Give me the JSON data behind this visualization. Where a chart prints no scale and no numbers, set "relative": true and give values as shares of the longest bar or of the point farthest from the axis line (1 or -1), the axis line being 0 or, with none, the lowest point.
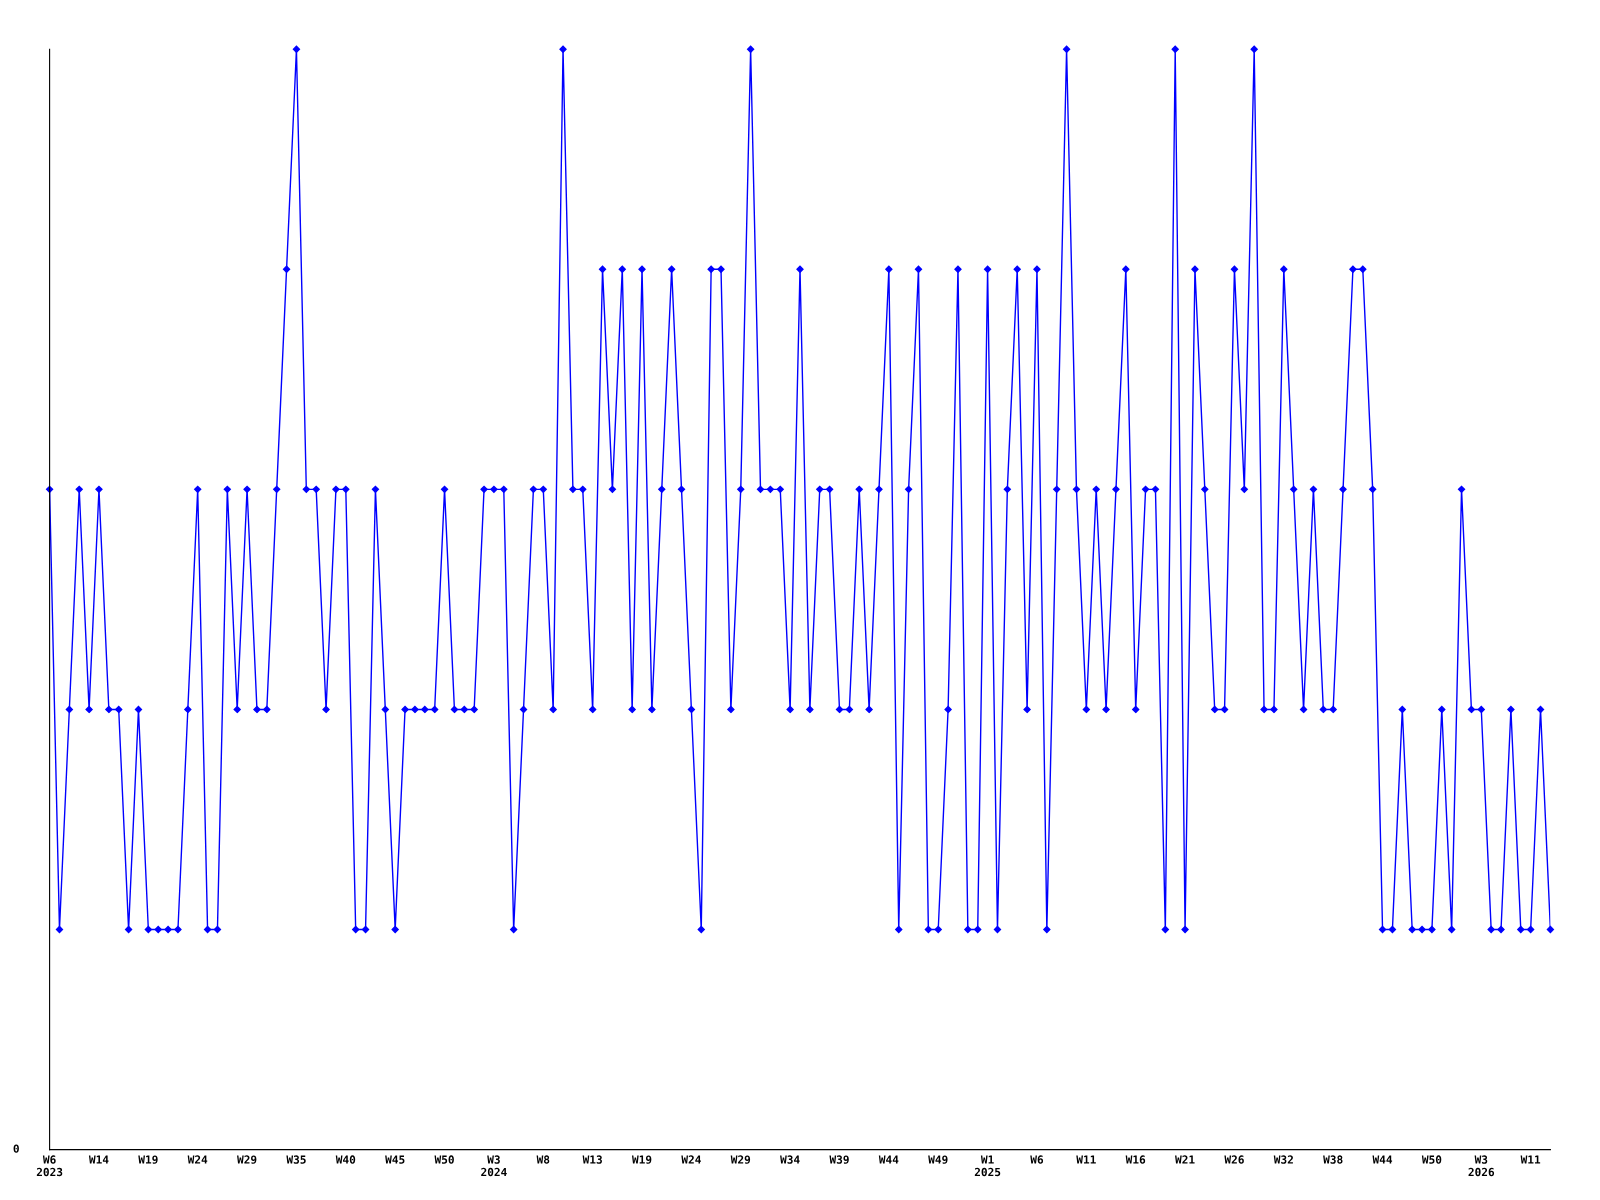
{
  "chart_data": {
    "type": "line",
    "relative": true,
    "marker": "diamond",
    "line_style": "solid",
    "grid": false,
    "color": "#0000ff",
    "annotations": [
      "0"
    ],
    "categories": [
      "W6\n2023",
      null,
      null,
      null,
      null,
      "W14",
      null,
      null,
      null,
      null,
      "W19",
      null,
      null,
      null,
      null,
      "W24",
      null,
      null,
      null,
      null,
      "W29",
      null,
      null,
      null,
      null,
      "W35",
      null,
      null,
      null,
      null,
      "W40",
      null,
      null,
      null,
      null,
      "W45",
      null,
      null,
      null,
      null,
      "W50",
      null,
      null,
      null,
      null,
      "W3\n2024",
      null,
      null,
      null,
      null,
      "W8",
      null,
      null,
      null,
      null,
      "W13",
      null,
      null,
      null,
      null,
      "W19",
      null,
      null,
      null,
      null,
      "W24",
      null,
      null,
      null,
      null,
      "W29",
      null,
      null,
      null,
      null,
      "W34",
      null,
      null,
      null,
      null,
      "W39",
      null,
      null,
      null,
      null,
      "W44",
      null,
      null,
      null,
      null,
      "W49",
      null,
      null,
      null,
      null,
      "W1\n2025",
      null,
      null,
      null,
      null,
      "W6",
      null,
      null,
      null,
      null,
      "W11",
      null,
      null,
      null,
      null,
      "W16",
      null,
      null,
      null,
      null,
      "W21",
      null,
      null,
      null,
      null,
      "W26",
      null,
      null,
      null,
      null,
      "W32",
      null,
      null,
      null,
      null,
      "W38",
      null,
      null,
      null,
      null,
      "W44",
      null,
      null,
      null,
      null,
      "W50",
      null,
      null,
      null,
      null,
      "W3\n2026",
      null,
      null,
      null,
      null,
      "W11",
      null,
      null
    ],
    "values": [
      0.6,
      0.2,
      0.4,
      0.6,
      0.4,
      0.6,
      0.4,
      0.4,
      0.2,
      0.4,
      0.2,
      0.2,
      0.2,
      0.2,
      0.4,
      0.6,
      0.2,
      0.2,
      0.6,
      0.4,
      0.6,
      0.4,
      0.4,
      0.6,
      0.8,
      1.0,
      0.6,
      0.6,
      0.4,
      0.6,
      0.6,
      0.2,
      0.2,
      0.6,
      0.4,
      0.2,
      0.4,
      0.4,
      0.4,
      0.4,
      0.6,
      0.4,
      0.4,
      0.4,
      0.6,
      0.6,
      0.6,
      0.2,
      0.4,
      0.6,
      0.6,
      0.4,
      1.0,
      0.6,
      0.6,
      0.4,
      0.8,
      0.6,
      0.8,
      0.4,
      0.8,
      0.4,
      0.6,
      0.8,
      0.6,
      0.4,
      0.2,
      0.8,
      0.8,
      0.4,
      0.6,
      1.0,
      0.6,
      0.6,
      0.6,
      0.4,
      0.8,
      0.4,
      0.6,
      0.6,
      0.4,
      0.4,
      0.6,
      0.4,
      0.6,
      0.8,
      0.2,
      0.6,
      0.8,
      0.2,
      0.2,
      0.4,
      0.8,
      0.2,
      0.2,
      0.8,
      0.2,
      0.6,
      0.8,
      0.4,
      0.8,
      0.2,
      0.6,
      1.0,
      0.6,
      0.4,
      0.6,
      0.4,
      0.6,
      0.8,
      0.4,
      0.6,
      0.6,
      0.2,
      1.0,
      0.2,
      0.8,
      0.6,
      0.4,
      0.4,
      0.8,
      0.6,
      1.0,
      0.4,
      0.4,
      0.8,
      0.6,
      0.4,
      0.6,
      0.4,
      0.4,
      0.6,
      0.8,
      0.8,
      0.6,
      0.2,
      0.2,
      0.4,
      0.2,
      0.2,
      0.2,
      0.4,
      0.2,
      0.6,
      0.4,
      0.4,
      0.2,
      0.2,
      0.4,
      0.2,
      0.2,
      0.4,
      0.2
    ]
  }
}
